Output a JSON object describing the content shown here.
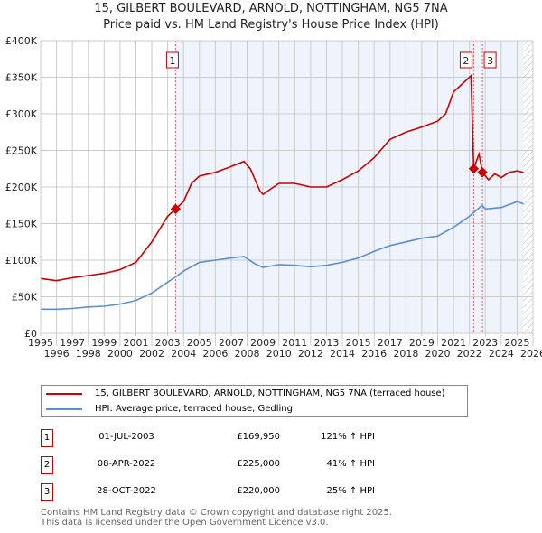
{
  "chart_data": {
    "type": "line",
    "title": "15, GILBERT BOULEVARD, ARNOLD, NOTTINGHAM, NG5 7NA",
    "subtitle": "Price paid vs. HM Land Registry's House Price Index (HPI)",
    "xlim": [
      1995,
      2026
    ],
    "ylim": [
      0,
      400000
    ],
    "x_ticks": [
      "1995",
      "1996",
      "1997",
      "1998",
      "1999",
      "2000",
      "2001",
      "2002",
      "2003",
      "2004",
      "2005",
      "2006",
      "2007",
      "2008",
      "2009",
      "2010",
      "2011",
      "2012",
      "2013",
      "2014",
      "2015",
      "2016",
      "2017",
      "2018",
      "2019",
      "2020",
      "2021",
      "2022",
      "2023",
      "2024",
      "2025",
      "2026"
    ],
    "y_ticks": [
      {
        "v": 0,
        "label": "£0"
      },
      {
        "v": 50000,
        "label": "£50K"
      },
      {
        "v": 100000,
        "label": "£100K"
      },
      {
        "v": 150000,
        "label": "£150K"
      },
      {
        "v": 200000,
        "label": "£200K"
      },
      {
        "v": 250000,
        "label": "£250K"
      },
      {
        "v": 300000,
        "label": "£300K"
      },
      {
        "v": 350000,
        "label": "£350K"
      },
      {
        "v": 400000,
        "label": "£400K"
      }
    ],
    "grid": true,
    "series": [
      {
        "name": "15, GILBERT BOULEVARD, ARNOLD, NOTTINGHAM, NG5 7NA (terraced house)",
        "color": "#cc0000",
        "x": [
          1995,
          1996,
          1997,
          1998,
          1999,
          2000,
          2001,
          2002,
          2003,
          2003.5,
          2004,
          2004.5,
          2005,
          2006,
          2007,
          2007.8,
          2008.2,
          2008.8,
          2009,
          2010,
          2011,
          2012,
          2013,
          2014,
          2015,
          2016,
          2017,
          2018,
          2019,
          2020,
          2020.5,
          2021,
          2021.5,
          2022.1,
          2022.27,
          2022.6,
          2022.82,
          2023.2,
          2023.6,
          2024,
          2024.5,
          2025,
          2025.4
        ],
        "y": [
          75000,
          72000,
          76000,
          79000,
          82000,
          87000,
          97000,
          125000,
          160000,
          169950,
          180000,
          205000,
          215000,
          220000,
          228000,
          235000,
          225000,
          195000,
          190000,
          205000,
          205000,
          200000,
          200000,
          210000,
          222000,
          240000,
          265000,
          275000,
          282000,
          290000,
          300000,
          330000,
          340000,
          352000,
          225000,
          245000,
          220000,
          210000,
          218000,
          213000,
          220000,
          222000,
          220000
        ]
      },
      {
        "name": "HPI: Average price, terraced house, Gedling",
        "color": "#5b8fd0",
        "x": [
          1995,
          1996,
          1997,
          1998,
          1999,
          2000,
          2001,
          2002,
          2003,
          2003.5,
          2004,
          2005,
          2006,
          2007,
          2007.8,
          2008.5,
          2009,
          2010,
          2011,
          2012,
          2013,
          2014,
          2015,
          2016,
          2017,
          2018,
          2019,
          2020,
          2021,
          2022,
          2022.8,
          2023,
          2024,
          2025,
          2025.4
        ],
        "y": [
          33000,
          33000,
          34000,
          36000,
          37000,
          40000,
          45000,
          55000,
          70000,
          77000,
          85000,
          97000,
          100000,
          103000,
          105000,
          95000,
          90000,
          94000,
          93000,
          91000,
          93000,
          97000,
          103000,
          112000,
          120000,
          125000,
          130000,
          133000,
          145000,
          160000,
          175000,
          170000,
          172000,
          180000,
          177000
        ]
      }
    ],
    "sales": [
      {
        "id": "1",
        "x": 2003.5,
        "y": 169950
      },
      {
        "id": "2",
        "x": 2022.27,
        "y": 225000
      },
      {
        "id": "3",
        "x": 2022.82,
        "y": 220000
      }
    ],
    "colors": {
      "red": "#cc0000",
      "blue": "#5b8fd0",
      "shade": "#eef3fc"
    }
  },
  "legend": {
    "red": "15, GILBERT BOULEVARD, ARNOLD, NOTTINGHAM, NG5 7NA (terraced house)",
    "blue": "HPI: Average price, terraced house, Gedling"
  },
  "transactions": [
    {
      "id": "1",
      "date": "01-JUL-2003",
      "price": "£169,950",
      "hpi": "121% ↑ HPI"
    },
    {
      "id": "2",
      "date": "08-APR-2022",
      "price": "£225,000",
      "hpi": "41% ↑ HPI"
    },
    {
      "id": "3",
      "date": "28-OCT-2022",
      "price": "£220,000",
      "hpi": "25% ↑ HPI"
    }
  ],
  "footer": {
    "line1": "Contains HM Land Registry data © Crown copyright and database right 2025.",
    "line2": "This data is licensed under the Open Government Licence v3.0."
  }
}
